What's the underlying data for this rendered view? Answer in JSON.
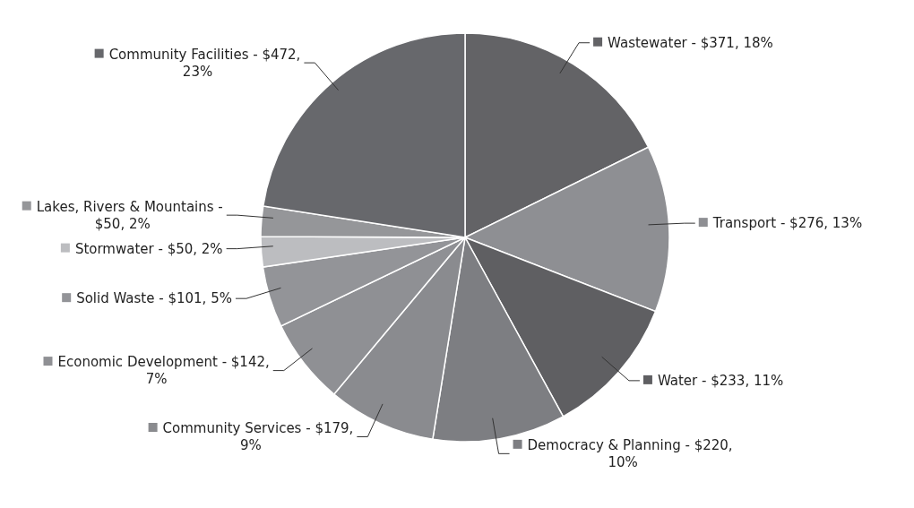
{
  "chart_data": {
    "type": "pie",
    "categories": [
      "Wastewater -",
      "Transport -",
      "Water -",
      "Democracy & Planning -",
      "Community Services -",
      "Economic Development -",
      "Solid Waste -",
      "Stormwater -",
      "Lakes, Rivers & Mountains -",
      "Community Facilities -"
    ],
    "values": [
      371,
      276,
      233,
      220,
      179,
      142,
      101,
      50,
      50,
      472
    ],
    "value_labels": [
      "$371, 18%",
      "$276, 13%",
      "$233, 11%",
      "$220, 10%",
      "$179, 9%",
      "$142, 7%",
      "$101, 5%",
      "$50, 2%",
      "$50, 2%",
      "$472, 23%"
    ],
    "colors": [
      "#636366",
      "#8e8f93",
      "#5f5f62",
      "#7d7e82",
      "#8a8b8f",
      "#8f9094",
      "#939498",
      "#bcbdc0",
      "#959699",
      "#67686c"
    ],
    "legend": "left"
  }
}
